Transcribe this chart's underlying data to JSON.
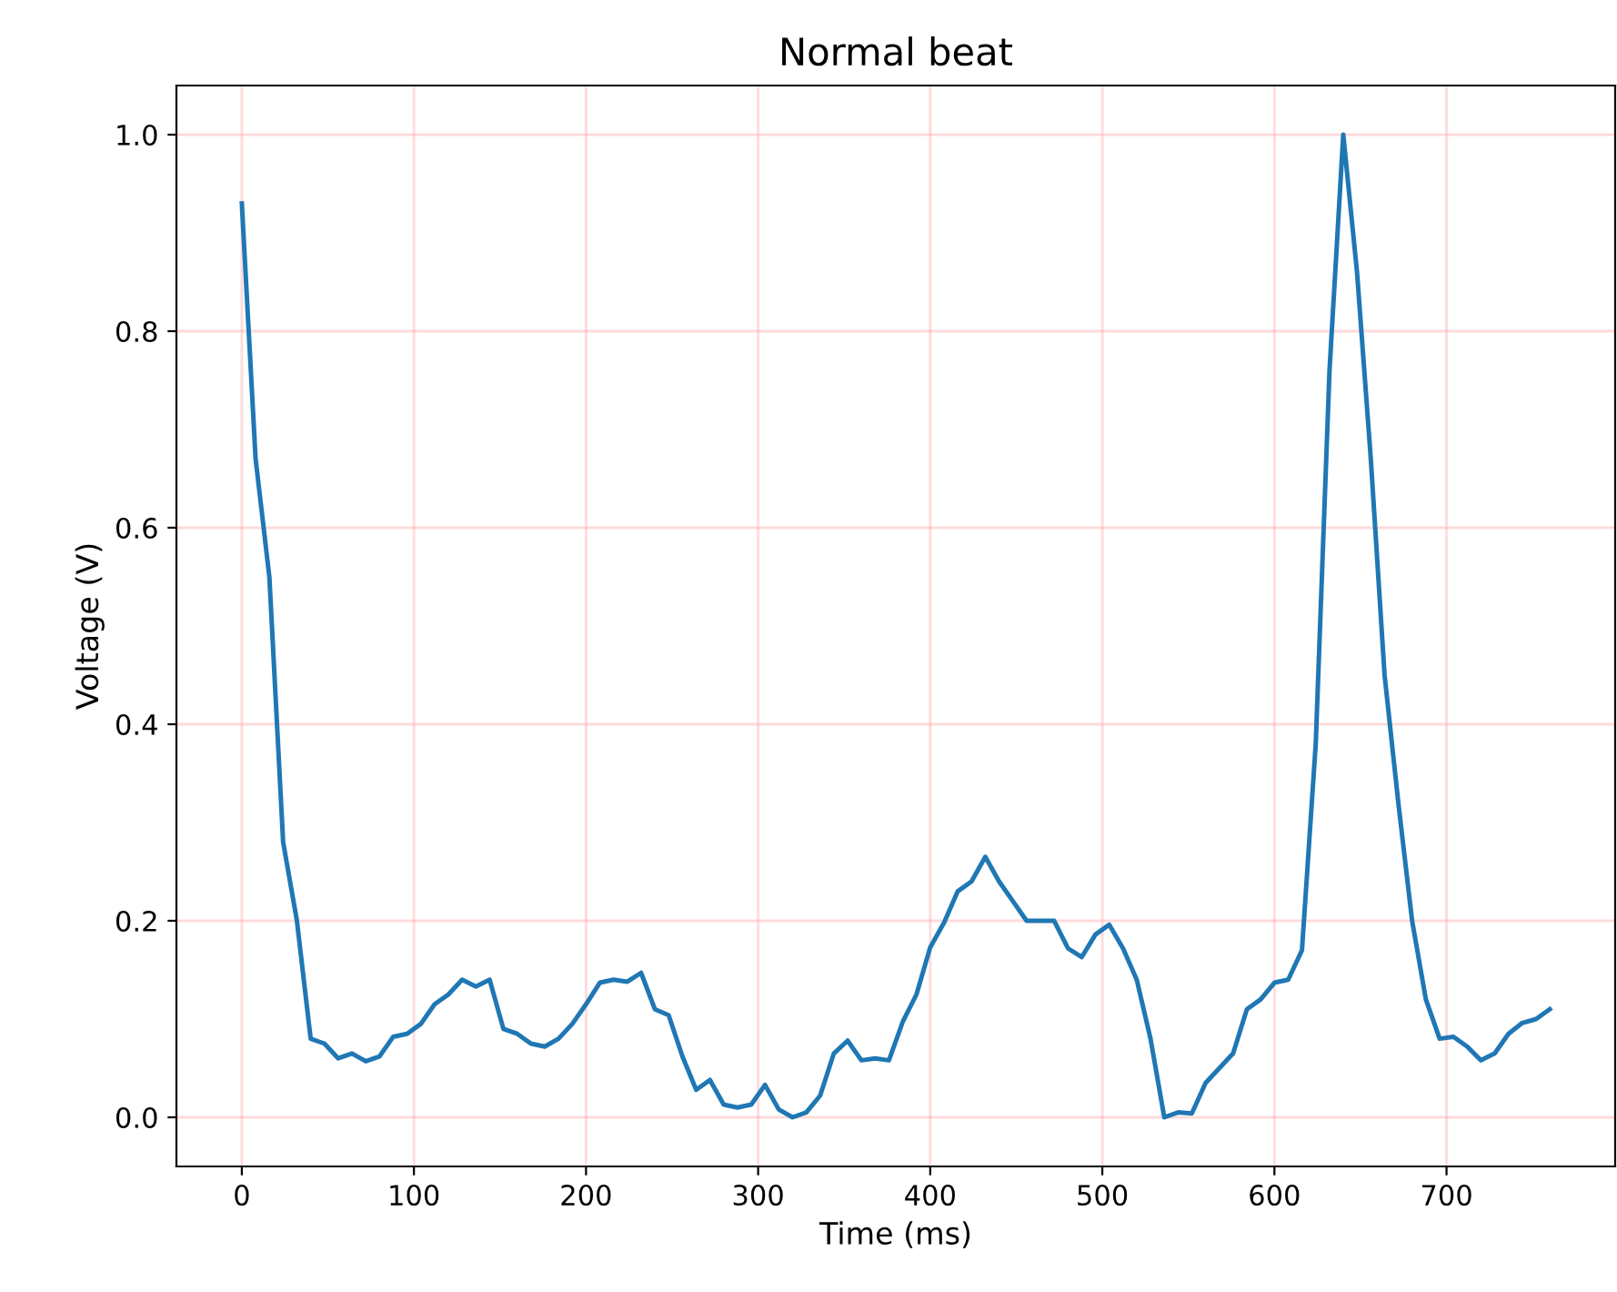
{
  "chart_data": {
    "type": "line",
    "title": "Normal beat",
    "xlabel": "Time (ms)",
    "ylabel": "Voltage (V)",
    "x": [
      0,
      8,
      16,
      24,
      32,
      40,
      48,
      56,
      64,
      72,
      80,
      88,
      96,
      104,
      112,
      120,
      128,
      136,
      144,
      152,
      160,
      168,
      176,
      184,
      192,
      200,
      208,
      216,
      224,
      232,
      240,
      248,
      256,
      264,
      272,
      280,
      288,
      296,
      304,
      312,
      320,
      328,
      336,
      344,
      352,
      360,
      368,
      376,
      384,
      392,
      400,
      408,
      416,
      424,
      432,
      440,
      448,
      456,
      464,
      472,
      480,
      488,
      496,
      504,
      512,
      520,
      528,
      536,
      544,
      552,
      560,
      568,
      576,
      584,
      592,
      600,
      608,
      616,
      624,
      632,
      640,
      648,
      656,
      664,
      672,
      680,
      688,
      696,
      704,
      712,
      720,
      728,
      736,
      744,
      752,
      760
    ],
    "series": [
      {
        "color": "#1f77b4",
        "values": [
          0.93,
          0.67,
          0.55,
          0.28,
          0.2,
          0.08,
          0.075,
          0.06,
          0.065,
          0.057,
          0.062,
          0.082,
          0.085,
          0.095,
          0.115,
          0.125,
          0.14,
          0.133,
          0.14,
          0.09,
          0.085,
          0.075,
          0.072,
          0.08,
          0.095,
          0.115,
          0.137,
          0.14,
          0.138,
          0.147,
          0.11,
          0.104,
          0.062,
          0.028,
          0.038,
          0.013,
          0.01,
          0.013,
          0.033,
          0.008,
          0.0,
          0.005,
          0.022,
          0.065,
          0.078,
          0.058,
          0.06,
          0.058,
          0.097,
          0.125,
          0.173,
          0.198,
          0.23,
          0.24,
          0.265,
          0.24,
          0.22,
          0.2,
          0.2,
          0.2,
          0.172,
          0.163,
          0.186,
          0.196,
          0.172,
          0.14,
          0.08,
          0.0,
          0.005,
          0.004,
          0.035,
          0.05,
          0.065,
          0.11,
          0.12,
          0.137,
          0.14,
          0.17,
          0.38,
          0.76,
          1.0,
          0.86,
          0.67,
          0.45,
          0.32,
          0.2,
          0.12,
          0.08,
          0.082,
          0.072,
          0.058,
          0.065,
          0.085,
          0.096,
          0.1,
          0.11
        ]
      }
    ],
    "xlim": [
      -38,
      798
    ],
    "ylim": [
      -0.05,
      1.05
    ],
    "xticks": [
      0,
      100,
      200,
      300,
      400,
      500,
      600,
      700
    ],
    "yticks": [
      {
        "value": 0,
        "label": "0.0"
      },
      {
        "value": 0.2,
        "label": "0.2"
      },
      {
        "value": 0.4,
        "label": "0.4"
      },
      {
        "value": 0.6,
        "label": "0.6"
      },
      {
        "value": 0.8,
        "label": "0.8"
      },
      {
        "value": 1,
        "label": "1.0"
      }
    ],
    "grid": true,
    "legend": false,
    "marker": "none",
    "line_style": "solid"
  }
}
